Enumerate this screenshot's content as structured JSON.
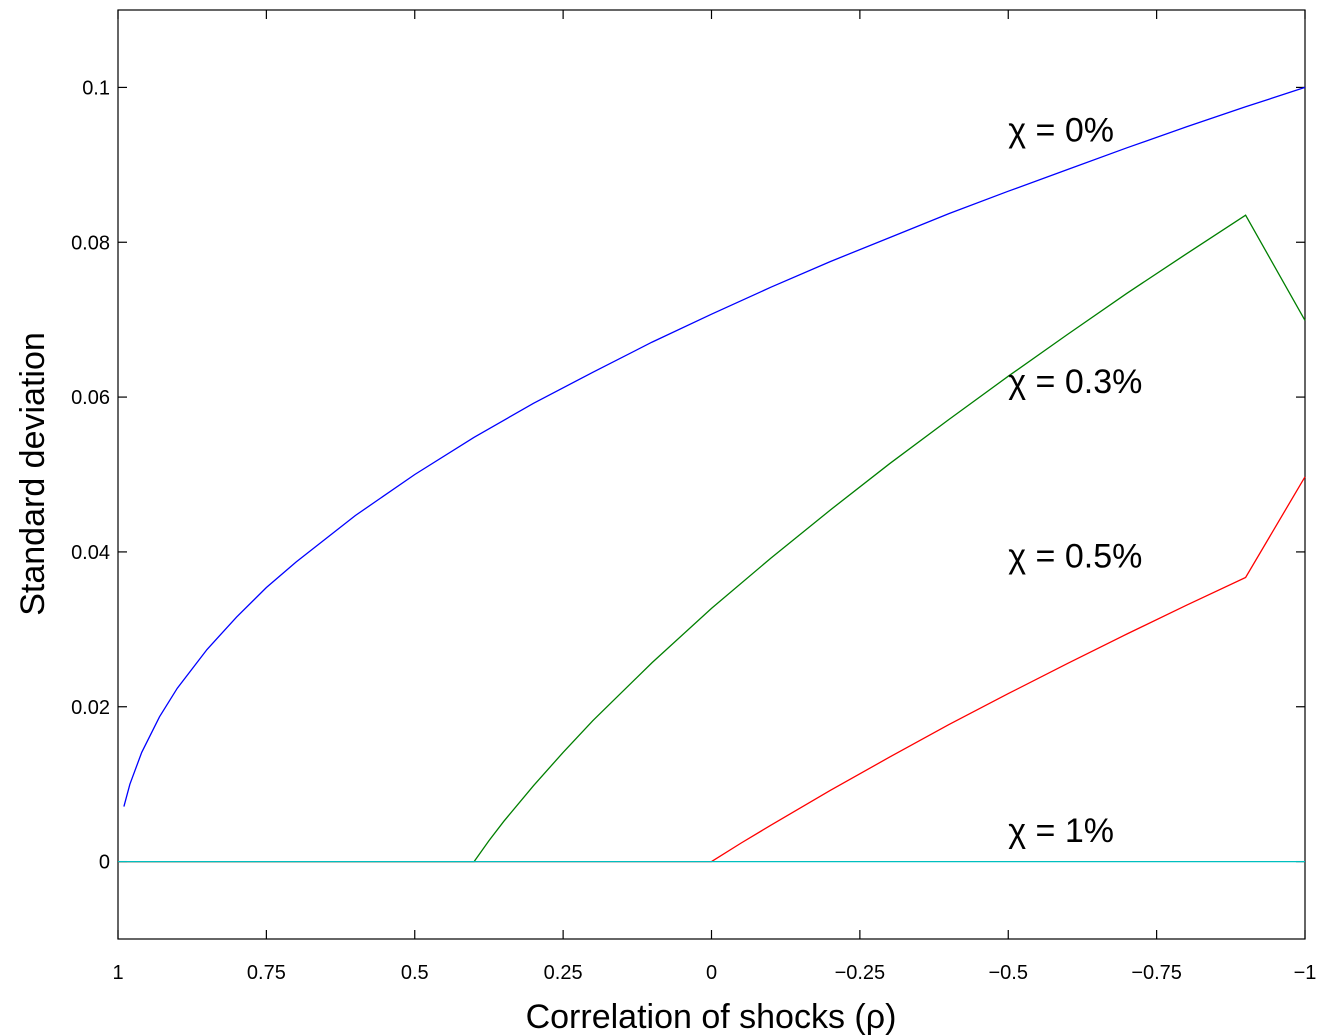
{
  "chart_data": {
    "type": "line",
    "xlabel": "Correlation of shocks (ρ)",
    "ylabel": "Standard deviation",
    "xlim": [
      1,
      -1
    ],
    "ylim": [
      -0.01,
      0.11
    ],
    "x_reversed": true,
    "grid": false,
    "x_ticks": [
      {
        "value": 1,
        "label": "1"
      },
      {
        "value": 0.75,
        "label": "0.75"
      },
      {
        "value": 0.5,
        "label": "0.5"
      },
      {
        "value": 0.25,
        "label": "0.25"
      },
      {
        "value": 0,
        "label": "0"
      },
      {
        "value": -0.25,
        "label": "−0.25"
      },
      {
        "value": -0.5,
        "label": "−0.5"
      },
      {
        "value": -0.75,
        "label": "−0.75"
      },
      {
        "value": -1,
        "label": "−1"
      }
    ],
    "y_ticks": [
      {
        "value": 0,
        "label": "0"
      },
      {
        "value": 0.02,
        "label": "0.02"
      },
      {
        "value": 0.04,
        "label": "0.04"
      },
      {
        "value": 0.06,
        "label": "0.06"
      },
      {
        "value": 0.08,
        "label": "0.08"
      },
      {
        "value": 0.1,
        "label": "0.1"
      }
    ],
    "series": [
      {
        "name": "χ = 0%",
        "color": "#0000ff",
        "label_at": [
          -0.5,
          0.093
        ],
        "x": [
          0.99,
          0.98,
          0.96,
          0.93,
          0.9,
          0.85,
          0.8,
          0.75,
          0.7,
          0.6,
          0.5,
          0.4,
          0.3,
          0.2,
          0.1,
          0.0,
          -0.1,
          -0.2,
          -0.3,
          -0.4,
          -0.5,
          -0.6,
          -0.7,
          -0.8,
          -0.9,
          -1.0
        ],
        "y": [
          0.0071,
          0.01,
          0.0141,
          0.0187,
          0.0224,
          0.0274,
          0.0316,
          0.0354,
          0.0387,
          0.0447,
          0.05,
          0.0548,
          0.0592,
          0.0632,
          0.0671,
          0.0707,
          0.0742,
          0.0775,
          0.0806,
          0.0837,
          0.0866,
          0.0894,
          0.0922,
          0.0949,
          0.0975,
          0.1
        ]
      },
      {
        "name": "χ = 0.3%",
        "color": "#007f00",
        "label_at": [
          -0.5,
          0.0605
        ],
        "x": [
          1,
          0.4,
          0.375,
          0.35,
          0.3,
          0.25,
          0.2,
          0.1,
          0.0,
          -0.1,
          -0.2,
          -0.3,
          -0.4,
          -0.5,
          -0.6,
          -0.7,
          -0.8,
          -0.9,
          -1.0
        ],
        "y": [
          0,
          0,
          0.0027,
          0.0052,
          0.0098,
          0.0141,
          0.0182,
          0.0257,
          0.0327,
          0.0392,
          0.0454,
          0.0514,
          0.0571,
          0.0627,
          0.0681,
          0.0734,
          0.0785,
          0.0835,
          0.0699
        ]
      },
      {
        "name": "χ = 0.5%",
        "color": "#ff0000",
        "label_at": [
          -0.5,
          0.038
        ],
        "x": [
          1,
          0.0,
          -0.05,
          -0.1,
          -0.2,
          -0.3,
          -0.4,
          -0.5,
          -0.6,
          -0.7,
          -0.8,
          -0.9,
          -1.0
        ],
        "y": [
          0,
          0,
          0.0024,
          0.0047,
          0.0092,
          0.0135,
          0.0177,
          0.0217,
          0.0256,
          0.0294,
          0.0331,
          0.0367,
          0.0497
        ]
      },
      {
        "name": "χ = 1%",
        "color": "#00bfbf",
        "label_at": [
          -0.5,
          0.0025
        ],
        "x": [
          1,
          -1
        ],
        "y": [
          0,
          0
        ]
      }
    ]
  }
}
